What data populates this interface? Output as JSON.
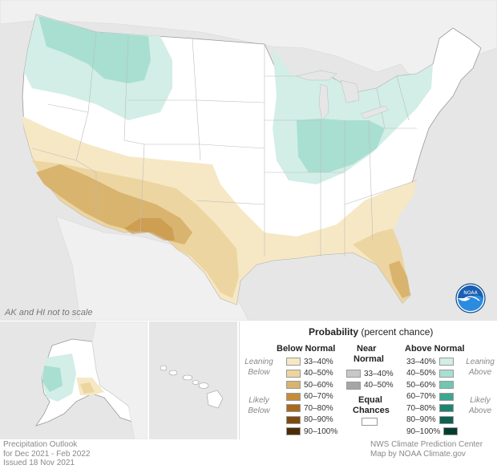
{
  "map": {
    "scale_note": "AK and HI not to scale",
    "logo_text": "NOAA"
  },
  "legend": {
    "title_bold": "Probability",
    "title_rest": " (percent chance)",
    "below": {
      "heading": "Below Normal",
      "leaning_label_1": "Leaning",
      "leaning_label_2": "Below",
      "likely_label_1": "Likely",
      "likely_label_2": "Below",
      "items": [
        {
          "label": "33–40%",
          "color": "#f6e8c4"
        },
        {
          "label": "40–50%",
          "color": "#ecd5a1"
        },
        {
          "label": "50–60%",
          "color": "#d9b46e"
        },
        {
          "label": "60–70%",
          "color": "#c48d3c"
        },
        {
          "label": "70–80%",
          "color": "#a76a1e"
        },
        {
          "label": "80–90%",
          "color": "#7d4a10"
        },
        {
          "label": "90–100%",
          "color": "#4d2c05"
        }
      ]
    },
    "near": {
      "heading_1": "Near",
      "heading_2": "Normal",
      "items": [
        {
          "label": "33–40%",
          "color": "#c8c8c8"
        },
        {
          "label": "40–50%",
          "color": "#a6a6a6"
        }
      ],
      "equal_1": "Equal",
      "equal_2": "Chances",
      "equal_color": "#ffffff"
    },
    "above": {
      "heading": "Above Normal",
      "leaning_label_1": "Leaning",
      "leaning_label_2": "Above",
      "likely_label_1": "Likely",
      "likely_label_2": "Above",
      "items": [
        {
          "label": "33–40%",
          "color": "#d2eee6"
        },
        {
          "label": "40–50%",
          "color": "#a8dfd0"
        },
        {
          "label": "50–60%",
          "color": "#6fc7b1"
        },
        {
          "label": "60–70%",
          "color": "#3aa88f"
        },
        {
          "label": "70–80%",
          "color": "#1d8470"
        },
        {
          "label": "80–90%",
          "color": "#0d6352"
        },
        {
          "label": "90–100%",
          "color": "#033d31"
        }
      ]
    }
  },
  "caption": {
    "line1": "Precipitation Outlook",
    "line2": "for Dec 2021 - Feb 2022",
    "line3": "Issued 18 Nov 2021",
    "credit1": "NWS Climate Prediction Center",
    "credit2": "Map by NOAA Climate.gov"
  }
}
